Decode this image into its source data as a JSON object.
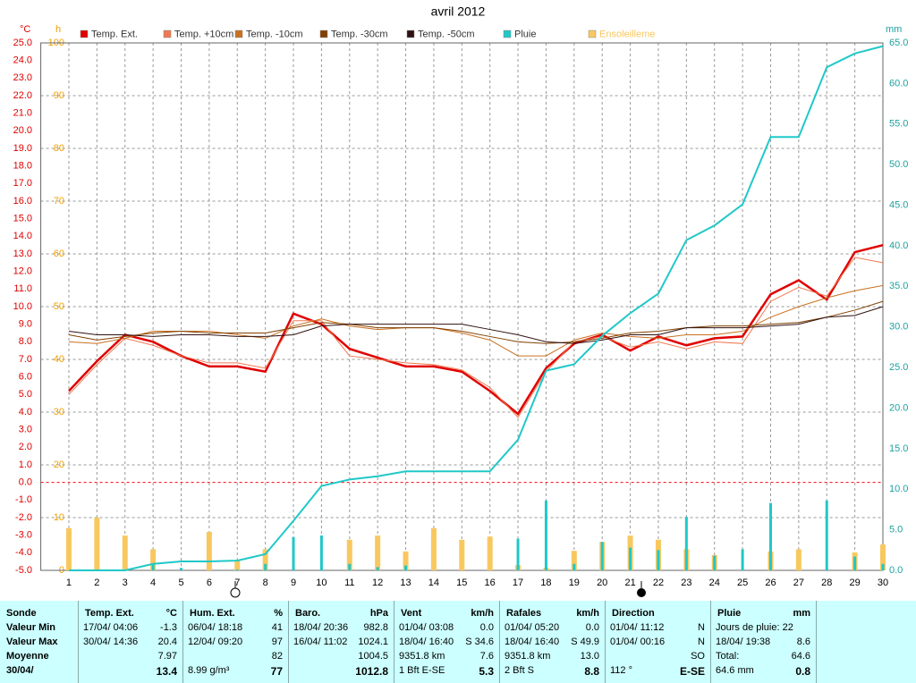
{
  "chart_data": {
    "type": "line",
    "title": "avril 2012",
    "y_unit": "°C",
    "y2_unit": "mm",
    "y3_unit": "h",
    "x": [
      1,
      2,
      3,
      4,
      5,
      6,
      7,
      8,
      9,
      10,
      11,
      12,
      13,
      14,
      15,
      16,
      17,
      18,
      19,
      20,
      21,
      22,
      23,
      24,
      25,
      26,
      27,
      28,
      29,
      30
    ],
    "xlim": [
      0,
      30
    ],
    "xticks": [
      1,
      2,
      3,
      4,
      5,
      6,
      7,
      8,
      9,
      10,
      11,
      12,
      13,
      14,
      15,
      16,
      17,
      18,
      19,
      20,
      21,
      22,
      23,
      24,
      25,
      26,
      27,
      28,
      29,
      30
    ],
    "ylim": [
      -5,
      25
    ],
    "yticks": [
      {
        "value": -5,
        "label": "-5.0"
      },
      {
        "value": -4,
        "label": "-4.0"
      },
      {
        "value": -3,
        "label": "-3.0"
      },
      {
        "value": -2,
        "label": "-2.0"
      },
      {
        "value": -1,
        "label": "-1.0"
      },
      {
        "value": 0,
        "label": "0.0"
      },
      {
        "value": 1,
        "label": "1.0"
      },
      {
        "value": 2,
        "label": "2.0"
      },
      {
        "value": 3,
        "label": "3.0"
      },
      {
        "value": 4,
        "label": "4.0"
      },
      {
        "value": 5,
        "label": "5.0"
      },
      {
        "value": 6,
        "label": "6.0"
      },
      {
        "value": 7,
        "label": "7.0"
      },
      {
        "value": 8,
        "label": "8.0"
      },
      {
        "value": 9,
        "label": "9.0"
      },
      {
        "value": 10,
        "label": "10.0"
      },
      {
        "value": 11,
        "label": "11.0"
      },
      {
        "value": 12,
        "label": "12.0"
      },
      {
        "value": 13,
        "label": "13.0"
      },
      {
        "value": 14,
        "label": "14.0"
      },
      {
        "value": 15,
        "label": "15.0"
      },
      {
        "value": 16,
        "label": "16.0"
      },
      {
        "value": 17,
        "label": "17.0"
      },
      {
        "value": 18,
        "label": "18.0"
      },
      {
        "value": 19,
        "label": "19.0"
      },
      {
        "value": 20,
        "label": "20.0"
      },
      {
        "value": 21,
        "label": "21.0"
      },
      {
        "value": 22,
        "label": "22.0"
      },
      {
        "value": 23,
        "label": "23.0"
      },
      {
        "value": 24,
        "label": "24.0"
      },
      {
        "value": 25,
        "label": "25.0"
      }
    ],
    "y2lim": [
      0,
      65
    ],
    "y2ticks": [
      {
        "value": 0,
        "label": "0.0"
      },
      {
        "value": 5,
        "label": "5.0"
      },
      {
        "value": 10,
        "label": "10.0"
      },
      {
        "value": 15,
        "label": "15.0"
      },
      {
        "value": 20,
        "label": "20.0"
      },
      {
        "value": 25,
        "label": "25.0"
      },
      {
        "value": 30,
        "label": "30.0"
      },
      {
        "value": 35,
        "label": "35.0"
      },
      {
        "value": 40,
        "label": "40.0"
      },
      {
        "value": 45,
        "label": "45.0"
      },
      {
        "value": 50,
        "label": "50.0"
      },
      {
        "value": 55,
        "label": "55.0"
      },
      {
        "value": 60,
        "label": "60.0"
      },
      {
        "value": 65,
        "label": "65.0"
      }
    ],
    "y3lim": [
      0,
      100
    ],
    "y3ticks": [
      0,
      10,
      20,
      30,
      40,
      50,
      60,
      70,
      80,
      90,
      100
    ],
    "grid": true,
    "reference_line": {
      "value": 0,
      "color": "#ff0000"
    },
    "series": [
      {
        "name": "Temp. Ext.",
        "color": "#e00000",
        "width": 2.5,
        "axis": "y",
        "values": [
          5.2,
          6.9,
          8.4,
          8.0,
          7.2,
          6.6,
          6.6,
          6.3,
          9.6,
          9.0,
          7.6,
          7.1,
          6.6,
          6.6,
          6.3,
          5.2,
          3.9,
          6.5,
          7.9,
          8.4,
          7.5,
          8.3,
          7.8,
          8.2,
          8.3,
          10.7,
          11.5,
          10.4,
          13.1,
          13.5
        ]
      },
      {
        "name": "Temp. +10cm",
        "color": "#f07850",
        "width": 1,
        "axis": "y",
        "values": [
          5.0,
          6.7,
          8.2,
          7.8,
          7.2,
          6.8,
          6.8,
          6.5,
          9.2,
          9.2,
          7.2,
          7.0,
          6.8,
          6.7,
          6.4,
          5.4,
          3.7,
          6.3,
          8.0,
          8.3,
          7.7,
          8.0,
          7.6,
          8.0,
          7.9,
          10.3,
          11.1,
          10.6,
          12.8,
          12.5
        ]
      },
      {
        "name": "Temp. -10cm",
        "color": "#c87020",
        "width": 1,
        "axis": "y",
        "values": [
          8.0,
          7.9,
          8.2,
          8.6,
          8.6,
          8.6,
          8.4,
          8.2,
          8.9,
          9.3,
          8.9,
          8.7,
          8.8,
          8.8,
          8.5,
          8.1,
          7.2,
          7.2,
          8.1,
          8.5,
          8.3,
          8.2,
          8.4,
          8.4,
          8.6,
          9.4,
          10.0,
          10.5,
          10.9,
          11.2
        ]
      },
      {
        "name": "Temp. -30cm",
        "color": "#804000",
        "width": 1,
        "axis": "y",
        "values": [
          8.4,
          8.1,
          8.3,
          8.5,
          8.6,
          8.5,
          8.5,
          8.5,
          8.8,
          9.1,
          9.0,
          8.8,
          8.8,
          8.8,
          8.6,
          8.3,
          8.0,
          7.9,
          8.0,
          8.2,
          8.5,
          8.6,
          8.8,
          8.9,
          8.9,
          9.0,
          9.1,
          9.4,
          9.8,
          10.3
        ]
      },
      {
        "name": "Temp. -50cm",
        "color": "#301010",
        "width": 1,
        "axis": "y",
        "values": [
          8.6,
          8.4,
          8.4,
          8.3,
          8.4,
          8.4,
          8.3,
          8.3,
          8.4,
          8.9,
          9.0,
          9.0,
          9.0,
          9.0,
          9.0,
          8.7,
          8.4,
          8.0,
          7.9,
          8.1,
          8.4,
          8.4,
          8.8,
          8.8,
          8.8,
          8.9,
          9.0,
          9.4,
          9.5,
          10.0
        ]
      },
      {
        "name": "Pluie",
        "color": "#20c8c8",
        "width": 2,
        "axis": "y2",
        "values": [
          0,
          0,
          0,
          0.8,
          1.1,
          1.1,
          1.2,
          2.0,
          6.1,
          10.4,
          11.2,
          11.6,
          12.2,
          12.2,
          12.2,
          12.2,
          16.1,
          24.6,
          25.4,
          28.9,
          31.7,
          34.1,
          40.7,
          42.5,
          45.1,
          53.4,
          53.4,
          62.0,
          63.7,
          64.6
        ],
        "bars": [
          0,
          0,
          0,
          0.8,
          0.3,
          0,
          0.1,
          0.8,
          4.1,
          4.3,
          0.8,
          0.4,
          0.6,
          0,
          0,
          0,
          3.9,
          8.6,
          0.8,
          3.5,
          2.8,
          2.5,
          6.6,
          1.8,
          2.6,
          8.3,
          0,
          8.6,
          1.7,
          0.8
        ]
      },
      {
        "name": "Ensoleilleme",
        "type": "bar",
        "color": "#f8c860",
        "axis": "y3",
        "values": [
          8,
          10,
          6.6,
          4,
          0,
          7.3,
          2,
          4,
          0,
          0,
          5.8,
          6.6,
          3.6,
          8,
          5.8,
          6.4,
          1,
          0.5,
          3.7,
          5.4,
          6.6,
          5.8,
          4,
          2.9,
          0,
          3.6,
          4,
          0,
          3.4,
          4.9
        ]
      }
    ]
  },
  "table": {
    "columns": [
      {
        "header": "Sonde",
        "rows": [
          {
            "l": "Valeur Min"
          },
          {
            "l": "Valeur Max"
          },
          {
            "l": "Moyenne"
          },
          {
            "l": "30/04/"
          }
        ]
      },
      {
        "header": "Temp. Ext.",
        "unit": "°C",
        "rows": [
          {
            "l": "17/04/  04:06",
            "r": "-1.3"
          },
          {
            "l": "30/04/  14:36",
            "r": "20.4"
          },
          {
            "r": "7.97"
          },
          {
            "r": "13.4"
          }
        ]
      },
      {
        "header": "Hum. Ext.",
        "unit": "%",
        "rows": [
          {
            "l": "06/04/  18:18",
            "r": "41"
          },
          {
            "l": "12/04/  09:20",
            "r": "97"
          },
          {
            "r": "82"
          },
          {
            "l": "8.99 g/m³",
            "r": "77"
          }
        ]
      },
      {
        "header": "Baro.",
        "unit": "hPa",
        "rows": [
          {
            "l": "18/04/  20:36",
            "r": "982.8"
          },
          {
            "l": "16/04/  11:02",
            "r": "1024.1"
          },
          {
            "r": "1004.5"
          },
          {
            "r": "1012.8"
          }
        ]
      },
      {
        "header": "Vent",
        "unit": "km/h",
        "rows": [
          {
            "l": "01/04/  03:08",
            "r": "0.0"
          },
          {
            "l": "18/04/  16:40",
            "r": "S 34.6"
          },
          {
            "l": "9351.8 km",
            "r": "7.6"
          },
          {
            "l": "1 Bft E-SE",
            "r": "5.3"
          }
        ]
      },
      {
        "header": "Rafales",
        "unit": "km/h",
        "rows": [
          {
            "l": "01/04/  05:20",
            "r": "0.0"
          },
          {
            "l": "18/04/  16:40",
            "r": "S 49.9"
          },
          {
            "l": "9351.8 km",
            "r": "13.0"
          },
          {
            "l": "2 Bft S",
            "r": "8.8"
          }
        ]
      },
      {
        "header": "Direction",
        "rows": [
          {
            "l": "01/04/  11:12",
            "r": "N"
          },
          {
            "l": "01/04/  00:16",
            "r": "N"
          },
          {
            "r": "SO"
          },
          {
            "l": "112 °",
            "r": "E-SE"
          }
        ]
      },
      {
        "header": "Pluie",
        "unit": "mm",
        "rows": [
          {
            "l": "Jours de pluie: 22"
          },
          {
            "l": "18/04/  19:38",
            "r": "8.6"
          },
          {
            "l": "Total:",
            "r": "64.6"
          },
          {
            "l": "64.6 mm",
            "r": "0.8"
          }
        ]
      }
    ]
  }
}
